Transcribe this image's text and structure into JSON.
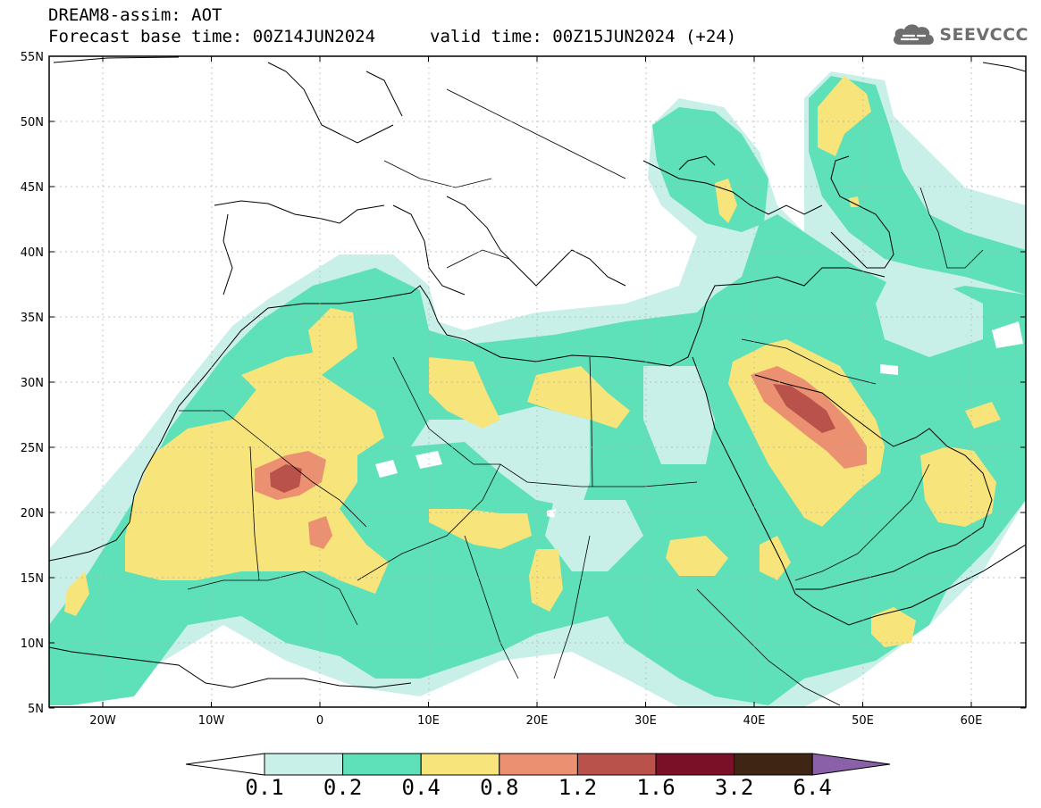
{
  "header": {
    "title": "DREAM8-assim: AOT",
    "base_time_label": "Forecast base time: 00Z14JUN2024",
    "valid_time_label": "valid time: 00Z15JUN2024 (+24)"
  },
  "logo": {
    "text": "SEEVCCC",
    "icon": "cloud-icon"
  },
  "map": {
    "lat_labels": [
      "55N",
      "50N",
      "45N",
      "40N",
      "35N",
      "30N",
      "25N",
      "20N",
      "15N",
      "10N",
      "5N"
    ],
    "lon_labels": [
      "20W",
      "10W",
      "0",
      "10E",
      "20E",
      "30E",
      "40E",
      "50E",
      "60E"
    ],
    "background": "#ffffff",
    "coastline_color": "#000000"
  },
  "colorbar": {
    "thresholds": [
      "0.1",
      "0.2",
      "0.4",
      "0.8",
      "1.2",
      "1.6",
      "3.2",
      "6.4"
    ],
    "colors": [
      "#ffffff",
      "#c8f0e8",
      "#5ee0b8",
      "#f7e47a",
      "#eb9070",
      "#b8524a",
      "#7a1028",
      "#3f2614",
      "#8a60a8"
    ]
  },
  "colors": {
    "c01": "#c8f0e8",
    "c02": "#5ee0b8",
    "c04": "#f7e47a",
    "c08": "#eb9070",
    "c12": "#b8524a"
  }
}
